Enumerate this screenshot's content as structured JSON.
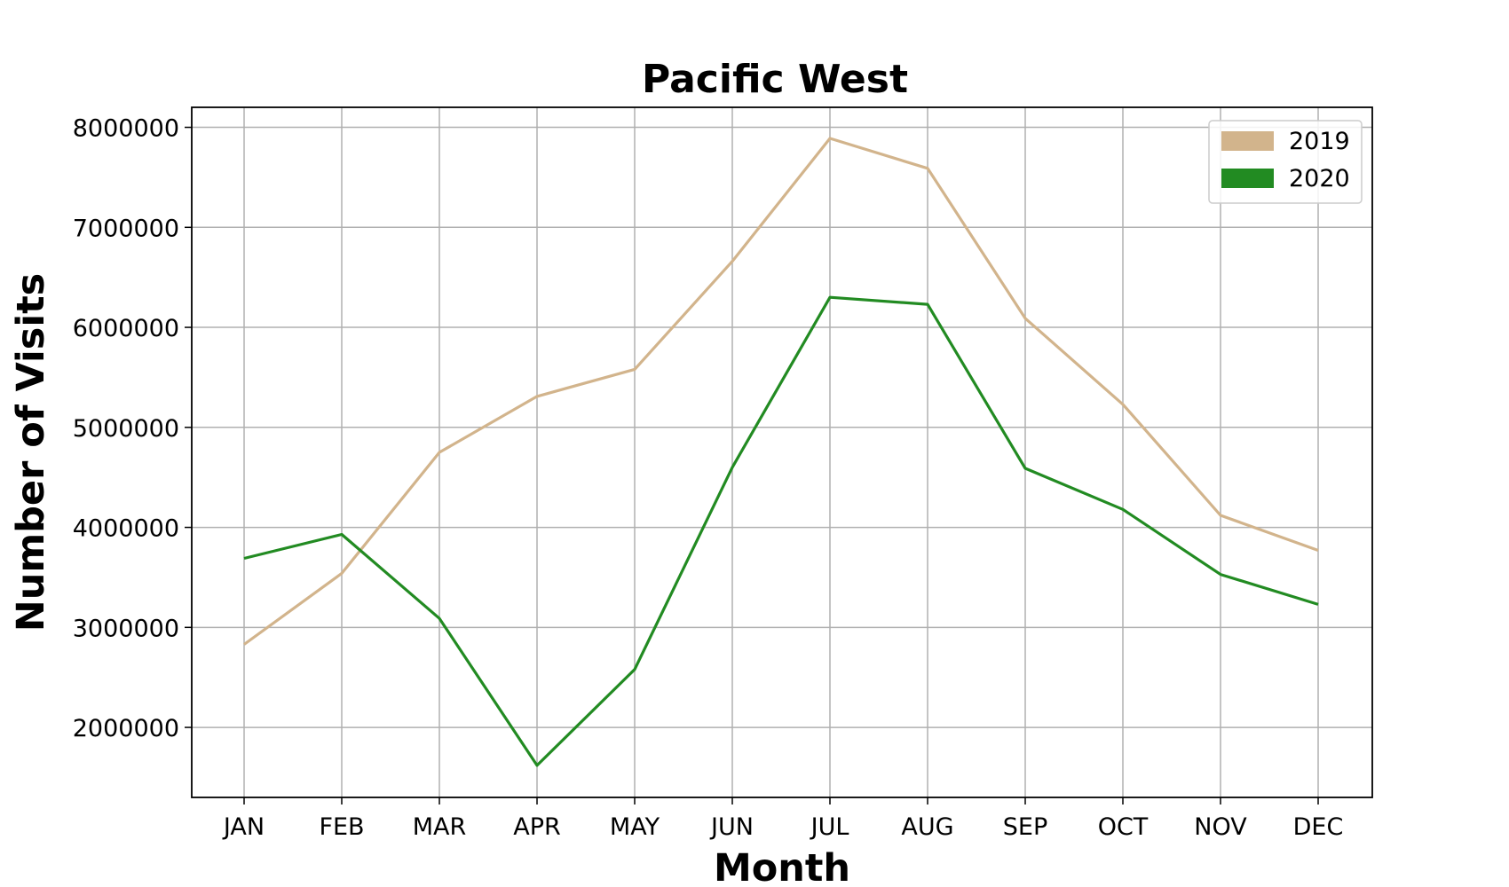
{
  "chart_data": {
    "type": "line",
    "title": "Pacific West",
    "xlabel": "Month",
    "ylabel": "Number of Visits",
    "categories": [
      "JAN",
      "FEB",
      "MAR",
      "APR",
      "MAY",
      "JUN",
      "JUL",
      "AUG",
      "SEP",
      "OCT",
      "NOV",
      "DEC"
    ],
    "ylim": [
      1300000,
      8200000
    ],
    "yticks": [
      2000000,
      3000000,
      4000000,
      5000000,
      6000000,
      7000000,
      8000000
    ],
    "ytick_labels": [
      "2000000",
      "3000000",
      "4000000",
      "5000000",
      "6000000",
      "7000000",
      "8000000"
    ],
    "grid": true,
    "legend_position": "top-right",
    "series": [
      {
        "name": "2019",
        "color": "#d2b48c",
        "values": [
          2830000,
          3540000,
          4750000,
          5310000,
          5580000,
          6660000,
          7890000,
          7590000,
          6090000,
          5230000,
          4120000,
          3770000
        ]
      },
      {
        "name": "2020",
        "color": "#228b22",
        "values": [
          3690000,
          3930000,
          3090000,
          1620000,
          2580000,
          4600000,
          6300000,
          6230000,
          4590000,
          4180000,
          3530000,
          3230000
        ]
      }
    ]
  }
}
